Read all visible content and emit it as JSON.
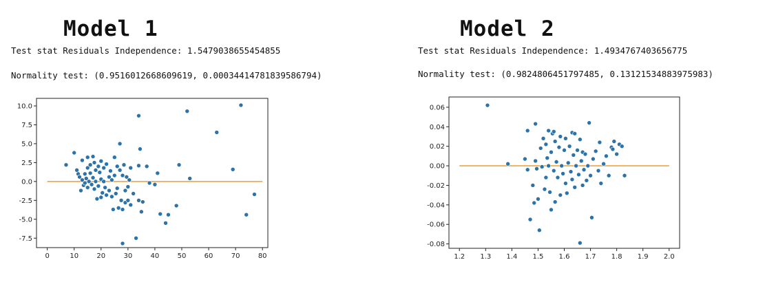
{
  "panels": [
    {
      "title": "Model 1",
      "stat_line": "Test stat Residuals Independence: 1.5479038655454855",
      "normality_line": "Normality test: (0.9516012668609619, 0.00034414781839586794)"
    },
    {
      "title": "Model 2",
      "stat_line": "Test stat Residuals Independence: 1.4934767403656775",
      "normality_line": "Normality test: (0.9824806451797485, 0.13121534883975983)"
    }
  ],
  "colors": {
    "points": "#2b73a8",
    "reference_line": "#f0a43a",
    "axes": "#222222"
  },
  "chart_data": [
    {
      "type": "scatter",
      "title": "",
      "xlabel": "",
      "ylabel": "",
      "xlim": [
        -4,
        82
      ],
      "ylim": [
        -8.75,
        11
      ],
      "x_ticks": [
        0,
        10,
        20,
        30,
        40,
        50,
        60,
        70,
        80
      ],
      "x_tick_labels": [
        "0",
        "10",
        "20",
        "30",
        "40",
        "50",
        "60",
        "70",
        "80"
      ],
      "y_ticks": [
        10.0,
        7.5,
        5.0,
        2.5,
        0.0,
        -2.5,
        -5.0,
        -7.5
      ],
      "y_tick_labels": [
        "10.0",
        "7.5",
        "5.0",
        "2.5",
        "0.0",
        "-2.5",
        "-5.0",
        "-7.5"
      ],
      "grid": false,
      "reference_line": {
        "x": [
          0,
          80
        ],
        "y": [
          0,
          0
        ]
      },
      "points": [
        [
          7,
          2.2
        ],
        [
          10,
          3.8
        ],
        [
          11,
          1.5
        ],
        [
          11.5,
          1.0
        ],
        [
          12,
          0.6
        ],
        [
          12.5,
          -1.2
        ],
        [
          13,
          2.8
        ],
        [
          13,
          0.2
        ],
        [
          13.5,
          -0.5
        ],
        [
          14,
          1.0
        ],
        [
          14,
          -0.2
        ],
        [
          14.5,
          0.4
        ],
        [
          15,
          3.2
        ],
        [
          15,
          1.8
        ],
        [
          15,
          -0.8
        ],
        [
          15.5,
          0.0
        ],
        [
          16,
          2.2
        ],
        [
          16,
          1.1
        ],
        [
          16.5,
          -0.4
        ],
        [
          17,
          3.3
        ],
        [
          17,
          0.5
        ],
        [
          17.5,
          2.5
        ],
        [
          17.5,
          -1.0
        ],
        [
          18,
          0.0
        ],
        [
          18,
          1.5
        ],
        [
          18.5,
          -2.3
        ],
        [
          19,
          2.0
        ],
        [
          19,
          -0.6
        ],
        [
          19.5,
          1.2
        ],
        [
          20,
          2.7
        ],
        [
          20,
          0.3
        ],
        [
          20,
          -2.1
        ],
        [
          20.5,
          -1.5
        ],
        [
          21,
          1.8
        ],
        [
          21,
          0.0
        ],
        [
          21.5,
          -0.8
        ],
        [
          22,
          2.3
        ],
        [
          22,
          -1.8
        ],
        [
          23,
          0.6
        ],
        [
          23,
          -1.2
        ],
        [
          23.5,
          1.4
        ],
        [
          24,
          -2.0
        ],
        [
          24,
          0.2
        ],
        [
          24.5,
          -3.7
        ],
        [
          25,
          3.2
        ],
        [
          25,
          0.8
        ],
        [
          25.5,
          -1.6
        ],
        [
          26,
          2.0
        ],
        [
          26,
          -0.9
        ],
        [
          26.5,
          -3.5
        ],
        [
          27,
          5.0
        ],
        [
          27,
          1.5
        ],
        [
          27.5,
          -2.5
        ],
        [
          28,
          0.8
        ],
        [
          28,
          -3.7
        ],
        [
          28,
          -8.2
        ],
        [
          28.5,
          2.2
        ],
        [
          29,
          -1.2
        ],
        [
          29,
          -2.8
        ],
        [
          29.5,
          0.6
        ],
        [
          30,
          -0.7
        ],
        [
          30,
          -2.5
        ],
        [
          30.5,
          0.2
        ],
        [
          31,
          1.8
        ],
        [
          31,
          -3.1
        ],
        [
          32,
          -1.6
        ],
        [
          33,
          -7.5
        ],
        [
          34,
          8.7
        ],
        [
          34,
          2.1
        ],
        [
          34,
          -2.5
        ],
        [
          34.5,
          4.3
        ],
        [
          35,
          -4.0
        ],
        [
          35.5,
          -2.7
        ],
        [
          37,
          2.0
        ],
        [
          38,
          -0.2
        ],
        [
          40,
          -0.4
        ],
        [
          41,
          1.1
        ],
        [
          42,
          -4.3
        ],
        [
          44,
          -5.5
        ],
        [
          45,
          -4.4
        ],
        [
          48,
          -3.2
        ],
        [
          49,
          2.2
        ],
        [
          52,
          9.3
        ],
        [
          53,
          0.4
        ],
        [
          63,
          6.5
        ],
        [
          69,
          1.6
        ],
        [
          72,
          10.1
        ],
        [
          74,
          -4.4
        ],
        [
          77,
          -1.7
        ]
      ]
    },
    {
      "type": "scatter",
      "title": "",
      "xlabel": "",
      "ylabel": "",
      "xlim": [
        1.16,
        2.04
      ],
      "ylim": [
        -0.0845,
        0.0705
      ],
      "x_ticks": [
        1.2,
        1.3,
        1.4,
        1.5,
        1.6,
        1.7,
        1.8,
        1.9,
        2.0
      ],
      "x_tick_labels": [
        "1.2",
        "1.3",
        "1.4",
        "1.5",
        "1.6",
        "1.7",
        "1.8",
        "1.9",
        "2.0"
      ],
      "y_ticks": [
        0.06,
        0.04,
        0.02,
        0.0,
        -0.02,
        -0.04,
        -0.06,
        -0.08
      ],
      "y_tick_labels": [
        "0.06",
        "0.04",
        "0.02",
        "0.00",
        "-0.02",
        "-0.04",
        "-0.06",
        "-0.08"
      ],
      "grid": false,
      "reference_line": {
        "x": [
          1.2,
          2.0
        ],
        "y": [
          0,
          0
        ]
      },
      "points": [
        [
          1.307,
          0.062
        ],
        [
          1.385,
          0.002
        ],
        [
          1.45,
          0.007
        ],
        [
          1.46,
          0.036
        ],
        [
          1.46,
          -0.004
        ],
        [
          1.47,
          -0.055
        ],
        [
          1.48,
          -0.02
        ],
        [
          1.485,
          -0.038
        ],
        [
          1.49,
          0.043
        ],
        [
          1.49,
          0.005
        ],
        [
          1.495,
          -0.003
        ],
        [
          1.5,
          -0.034
        ],
        [
          1.505,
          -0.066
        ],
        [
          1.51,
          0.018
        ],
        [
          1.515,
          -0.001
        ],
        [
          1.52,
          0.028
        ],
        [
          1.525,
          -0.024
        ],
        [
          1.53,
          0.022
        ],
        [
          1.53,
          -0.012
        ],
        [
          1.535,
          0.008
        ],
        [
          1.54,
          0.036
        ],
        [
          1.54,
          0.0
        ],
        [
          1.545,
          -0.027
        ],
        [
          1.55,
          0.014
        ],
        [
          1.55,
          -0.045
        ],
        [
          1.555,
          0.033
        ],
        [
          1.56,
          -0.005
        ],
        [
          1.56,
          0.035
        ],
        [
          1.565,
          0.025
        ],
        [
          1.565,
          -0.037
        ],
        [
          1.57,
          0.004
        ],
        [
          1.575,
          -0.012
        ],
        [
          1.58,
          0.019
        ],
        [
          1.585,
          0.03
        ],
        [
          1.585,
          -0.03
        ],
        [
          1.59,
          0.0
        ],
        [
          1.595,
          -0.008
        ],
        [
          1.6,
          0.016
        ],
        [
          1.605,
          0.028
        ],
        [
          1.605,
          -0.018
        ],
        [
          1.61,
          -0.028
        ],
        [
          1.615,
          0.003
        ],
        [
          1.62,
          0.02
        ],
        [
          1.625,
          -0.006
        ],
        [
          1.63,
          0.034
        ],
        [
          1.63,
          -0.014
        ],
        [
          1.635,
          0.011
        ],
        [
          1.64,
          0.033
        ],
        [
          1.64,
          -0.022
        ],
        [
          1.645,
          0.0
        ],
        [
          1.65,
          0.016
        ],
        [
          1.655,
          -0.009
        ],
        [
          1.66,
          0.027
        ],
        [
          1.66,
          -0.079
        ],
        [
          1.665,
          0.005
        ],
        [
          1.67,
          0.014
        ],
        [
          1.67,
          -0.02
        ],
        [
          1.675,
          -0.004
        ],
        [
          1.68,
          0.012
        ],
        [
          1.685,
          -0.015
        ],
        [
          1.69,
          0.0
        ],
        [
          1.695,
          0.044
        ],
        [
          1.7,
          -0.01
        ],
        [
          1.705,
          -0.053
        ],
        [
          1.71,
          0.007
        ],
        [
          1.72,
          0.015
        ],
        [
          1.73,
          -0.005
        ],
        [
          1.735,
          0.024
        ],
        [
          1.74,
          -0.018
        ],
        [
          1.75,
          0.002
        ],
        [
          1.76,
          0.01
        ],
        [
          1.77,
          -0.01
        ],
        [
          1.78,
          0.019
        ],
        [
          1.785,
          0.017
        ],
        [
          1.79,
          0.025
        ],
        [
          1.8,
          0.012
        ],
        [
          1.81,
          0.022
        ],
        [
          1.82,
          0.02
        ],
        [
          1.83,
          -0.01
        ]
      ]
    }
  ]
}
